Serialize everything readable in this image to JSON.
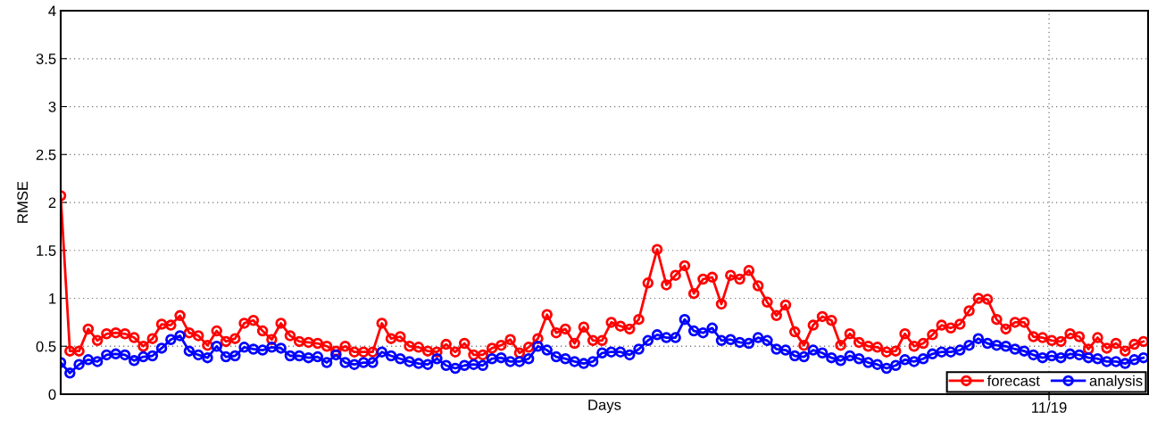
{
  "chart_data": {
    "type": "line",
    "xlabel": "Days",
    "ylabel": "RMSE",
    "categories": [
      null,
      null,
      null,
      null,
      null,
      null,
      null,
      null,
      null,
      null,
      null,
      null,
      null,
      null,
      null,
      null,
      null,
      null,
      null,
      null,
      null,
      null,
      null,
      null,
      null,
      null,
      null,
      null,
      null,
      null,
      null,
      null,
      null,
      null,
      null,
      null,
      null,
      null,
      null,
      null,
      null,
      null,
      null,
      null,
      null,
      null,
      null,
      null,
      null,
      null,
      null,
      null,
      null,
      null,
      null,
      null,
      null,
      null,
      null,
      null,
      null,
      null,
      null,
      null,
      null,
      null,
      null,
      null,
      null,
      null,
      null,
      null,
      null,
      null,
      null,
      null,
      null,
      null,
      null,
      null,
      null,
      null,
      null,
      null,
      null,
      null,
      null,
      null,
      null,
      null,
      null,
      null,
      null,
      null,
      null,
      null,
      null,
      null,
      null,
      null,
      null,
      null,
      null,
      null,
      null,
      null,
      null,
      null,
      null,
      null,
      null,
      null,
      null,
      null,
      null,
      null,
      null,
      null,
      null
    ],
    "series": [
      {
        "name": "forecast",
        "color": "#ff0000",
        "values": [
          2.07,
          0.45,
          0.45,
          0.68,
          0.56,
          0.63,
          0.64,
          0.63,
          0.59,
          0.5,
          0.58,
          0.73,
          0.72,
          0.82,
          0.64,
          0.61,
          0.51,
          0.66,
          0.55,
          0.58,
          0.74,
          0.77,
          0.66,
          0.57,
          0.74,
          0.61,
          0.55,
          0.54,
          0.53,
          0.5,
          0.45,
          0.5,
          0.44,
          0.44,
          0.44,
          0.74,
          0.58,
          0.6,
          0.5,
          0.49,
          0.45,
          0.44,
          0.52,
          0.44,
          0.53,
          0.41,
          0.41,
          0.48,
          0.51,
          0.57,
          0.43,
          0.49,
          0.58,
          0.83,
          0.64,
          0.68,
          0.53,
          0.7,
          0.56,
          0.56,
          0.75,
          0.71,
          0.68,
          0.78,
          1.16,
          1.51,
          1.14,
          1.24,
          1.34,
          1.05,
          1.2,
          1.22,
          0.94,
          1.24,
          1.2,
          1.29,
          1.13,
          0.96,
          0.82,
          0.93,
          0.65,
          0.51,
          0.72,
          0.81,
          0.77,
          0.51,
          0.63,
          0.54,
          0.5,
          0.49,
          0.44,
          0.45,
          0.63,
          0.5,
          0.53,
          0.62,
          0.72,
          0.69,
          0.73,
          0.87,
          1.0,
          0.99,
          0.78,
          0.68,
          0.75,
          0.75,
          0.6,
          0.59,
          0.56,
          0.55,
          0.63,
          0.6,
          0.47,
          0.59,
          0.48,
          0.53,
          0.45,
          0.52,
          0.55
        ]
      },
      {
        "name": "analysis",
        "color": "#0000ff",
        "values": [
          0.33,
          0.22,
          0.31,
          0.36,
          0.34,
          0.41,
          0.42,
          0.41,
          0.35,
          0.39,
          0.4,
          0.48,
          0.57,
          0.61,
          0.45,
          0.41,
          0.38,
          0.5,
          0.39,
          0.4,
          0.49,
          0.47,
          0.46,
          0.49,
          0.48,
          0.4,
          0.4,
          0.38,
          0.39,
          0.33,
          0.41,
          0.33,
          0.31,
          0.33,
          0.33,
          0.44,
          0.4,
          0.37,
          0.34,
          0.32,
          0.31,
          0.37,
          0.3,
          0.27,
          0.3,
          0.31,
          0.3,
          0.37,
          0.38,
          0.34,
          0.34,
          0.37,
          0.5,
          0.46,
          0.39,
          0.37,
          0.34,
          0.32,
          0.34,
          0.43,
          0.44,
          0.44,
          0.41,
          0.47,
          0.56,
          0.62,
          0.59,
          0.59,
          0.78,
          0.66,
          0.64,
          0.69,
          0.56,
          0.57,
          0.54,
          0.53,
          0.59,
          0.56,
          0.47,
          0.46,
          0.4,
          0.39,
          0.46,
          0.43,
          0.38,
          0.35,
          0.4,
          0.37,
          0.33,
          0.31,
          0.27,
          0.3,
          0.36,
          0.34,
          0.37,
          0.42,
          0.44,
          0.44,
          0.46,
          0.51,
          0.58,
          0.53,
          0.51,
          0.5,
          0.47,
          0.45,
          0.41,
          0.38,
          0.4,
          0.38,
          0.42,
          0.41,
          0.38,
          0.37,
          0.34,
          0.34,
          0.32,
          0.36,
          0.38
        ]
      }
    ],
    "annotations": [
      "11/19"
    ],
    "ylim": [
      0,
      4
    ],
    "yticks": [
      0,
      0.5,
      1,
      1.5,
      2,
      2.5,
      3,
      3.5,
      4
    ],
    "grid": true,
    "legend": "bottom right",
    "marker": "circle",
    "line_style": "solid"
  }
}
